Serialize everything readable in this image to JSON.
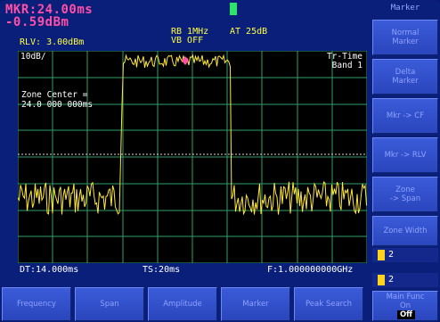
{
  "header": {
    "marker_line1": "MKR:24.00ms",
    "marker_line2": "-0.59dBm",
    "ref_level": "RLV: 3.00dBm",
    "rbw": "RB 1MHz",
    "vbw": "VB OFF",
    "attenuation": "AT 25dB",
    "sweep_indicator_color": "#2ee36a"
  },
  "grid": {
    "scale": "10dB/",
    "trace_mode": "Tr-Time",
    "band": "Band 1",
    "zone_label_1": "Zone Center =",
    "zone_label_2": "24.0 000 000ms",
    "columns": 10,
    "rows": 8,
    "trace_color": "#ffe83a",
    "grid_color": "#2f9f6a",
    "marker_color": "#ff4fa6"
  },
  "footer": {
    "dt": "DT:14.000ms",
    "ts": "TS:20ms",
    "freq": "F:1.000000000GHz"
  },
  "panel": {
    "title": "Marker",
    "softkeys": [
      {
        "line1": "Normal",
        "line2": "Marker"
      },
      {
        "line1": "Delta",
        "line2": "Marker"
      },
      {
        "line1": "Mkr -> CF",
        "line2": ""
      },
      {
        "line1": "Mkr -> RLV",
        "line2": ""
      },
      {
        "line1": "Zone",
        "line2": "-> Span"
      },
      {
        "line1": "Zone Width",
        "line2": ""
      }
    ],
    "value_1": "2",
    "value_2": "2",
    "main_func_line1": "Main Func",
    "main_func_on": "On",
    "main_func_off": "Off"
  },
  "bottom_menu": [
    "Frequency",
    "Span",
    "Amplitude",
    "Marker",
    "Peak Search"
  ]
}
